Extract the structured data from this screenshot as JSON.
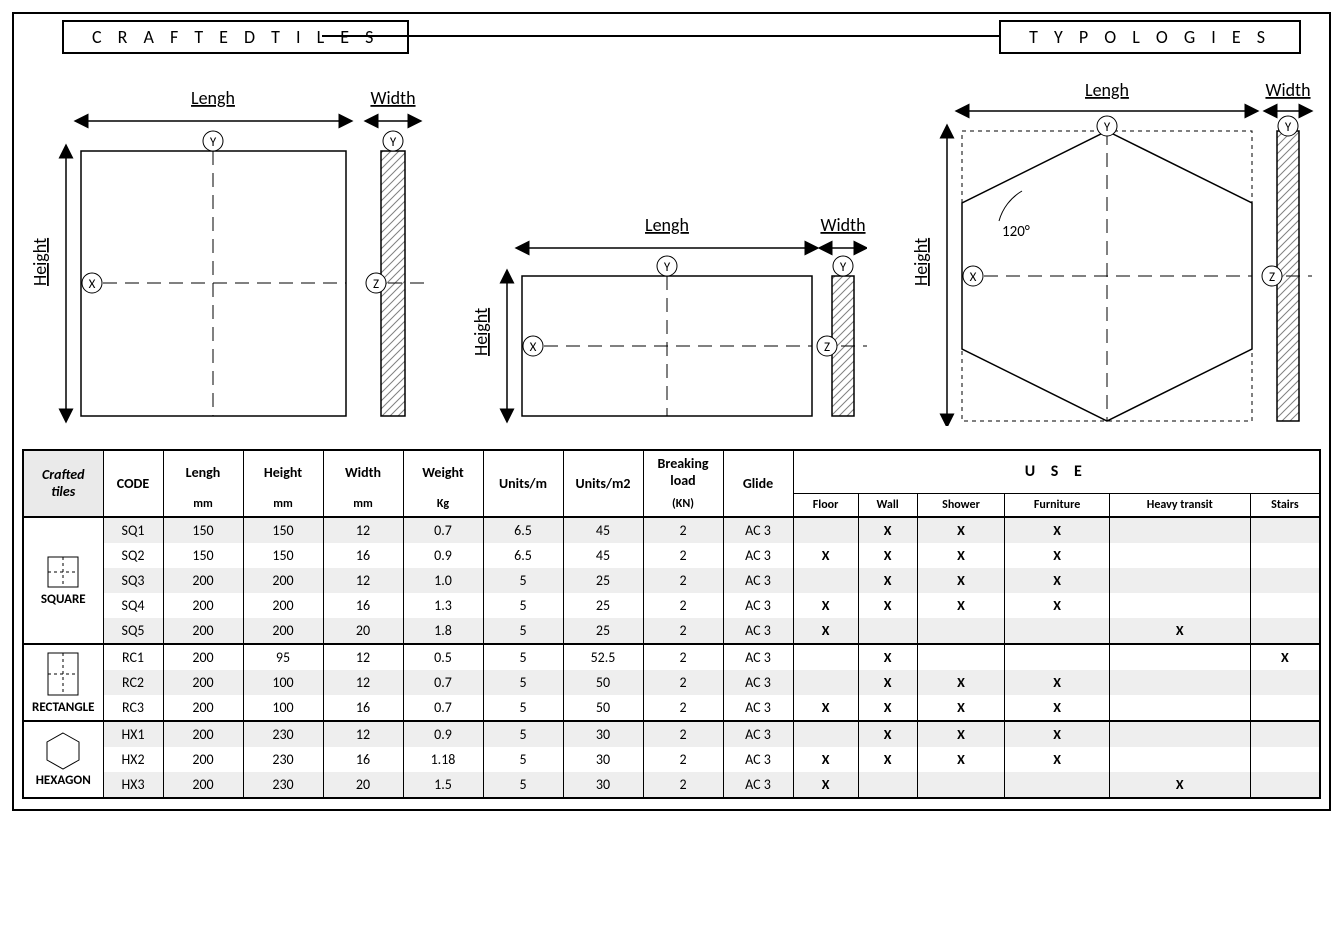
{
  "header": {
    "left": "C R A F T E D   T I L E S",
    "right": "T Y P O L O G I E S"
  },
  "diagrams": {
    "labels": {
      "length": "Lengh",
      "width": "Width",
      "height": "Height",
      "angle": "120°",
      "x": "X",
      "y": "Y",
      "z": "Z"
    }
  },
  "table": {
    "crafted_label": "Crafted\ntiles",
    "columns": {
      "code": "CODE",
      "length": "Lengh",
      "length_unit": "mm",
      "height": "Height",
      "height_unit": "mm",
      "width": "Width",
      "width_unit": "mm",
      "weight": "Weight",
      "weight_unit": "Kg",
      "units_m": "Units/m",
      "units_m2": "Units/m2",
      "breaking": "Breaking load",
      "breaking_unit": "(KN)",
      "glide": "Glide",
      "use": "U S E",
      "floor": "Floor",
      "wall": "Wall",
      "shower": "Shower",
      "furniture": "Furniture",
      "heavy": "Heavy transit",
      "stairs": "Stairs"
    },
    "groups": [
      {
        "shape": "SQUARE",
        "icon": "square",
        "rows": [
          {
            "code": "SQ1",
            "length": "150",
            "height": "150",
            "width": "12",
            "weight": "0.7",
            "unitsm": "6.5",
            "unitsm2": "45",
            "breaking": "2",
            "glide": "AC 3",
            "floor": "",
            "wall": "X",
            "shower": "X",
            "furniture": "X",
            "heavy": "",
            "stairs": ""
          },
          {
            "code": "SQ2",
            "length": "150",
            "height": "150",
            "width": "16",
            "weight": "0.9",
            "unitsm": "6.5",
            "unitsm2": "45",
            "breaking": "2",
            "glide": "AC 3",
            "floor": "X",
            "wall": "X",
            "shower": "X",
            "furniture": "X",
            "heavy": "",
            "stairs": ""
          },
          {
            "code": "SQ3",
            "length": "200",
            "height": "200",
            "width": "12",
            "weight": "1.0",
            "unitsm": "5",
            "unitsm2": "25",
            "breaking": "2",
            "glide": "AC 3",
            "floor": "",
            "wall": "X",
            "shower": "X",
            "furniture": "X",
            "heavy": "",
            "stairs": ""
          },
          {
            "code": "SQ4",
            "length": "200",
            "height": "200",
            "width": "16",
            "weight": "1.3",
            "unitsm": "5",
            "unitsm2": "25",
            "breaking": "2",
            "glide": "AC 3",
            "floor": "X",
            "wall": "X",
            "shower": "X",
            "furniture": "X",
            "heavy": "",
            "stairs": ""
          },
          {
            "code": "SQ5",
            "length": "200",
            "height": "200",
            "width": "20",
            "weight": "1.8",
            "unitsm": "5",
            "unitsm2": "25",
            "breaking": "2",
            "glide": "AC 3",
            "floor": "X",
            "wall": "",
            "shower": "",
            "furniture": "",
            "heavy": "X",
            "stairs": ""
          }
        ]
      },
      {
        "shape": "RECTANGLE",
        "icon": "rectangle",
        "rows": [
          {
            "code": "RC1",
            "length": "200",
            "height": "95",
            "width": "12",
            "weight": "0.5",
            "unitsm": "5",
            "unitsm2": "52.5",
            "breaking": "2",
            "glide": "AC 3",
            "floor": "",
            "wall": "X",
            "shower": "",
            "furniture": "",
            "heavy": "",
            "stairs": "X"
          },
          {
            "code": "RC2",
            "length": "200",
            "height": "100",
            "width": "12",
            "weight": "0.7",
            "unitsm": "5",
            "unitsm2": "50",
            "breaking": "2",
            "glide": "AC 3",
            "floor": "",
            "wall": "X",
            "shower": "X",
            "furniture": "X",
            "heavy": "",
            "stairs": ""
          },
          {
            "code": "RC3",
            "length": "200",
            "height": "100",
            "width": "16",
            "weight": "0.7",
            "unitsm": "5",
            "unitsm2": "50",
            "breaking": "2",
            "glide": "AC 3",
            "floor": "X",
            "wall": "X",
            "shower": "X",
            "furniture": "X",
            "heavy": "",
            "stairs": ""
          }
        ]
      },
      {
        "shape": "HEXAGON",
        "icon": "hexagon",
        "rows": [
          {
            "code": "HX1",
            "length": "200",
            "height": "230",
            "width": "12",
            "weight": "0.9",
            "unitsm": "5",
            "unitsm2": "30",
            "breaking": "2",
            "glide": "AC 3",
            "floor": "",
            "wall": "X",
            "shower": "X",
            "furniture": "X",
            "heavy": "",
            "stairs": ""
          },
          {
            "code": "HX2",
            "length": "200",
            "height": "230",
            "width": "16",
            "weight": "1.18",
            "unitsm": "5",
            "unitsm2": "30",
            "breaking": "2",
            "glide": "AC 3",
            "floor": "X",
            "wall": "X",
            "shower": "X",
            "furniture": "X",
            "heavy": "",
            "stairs": ""
          },
          {
            "code": "HX3",
            "length": "200",
            "height": "230",
            "width": "20",
            "weight": "1.5",
            "unitsm": "5",
            "unitsm2": "30",
            "breaking": "2",
            "glide": "AC 3",
            "floor": "X",
            "wall": "",
            "shower": "",
            "furniture": "",
            "heavy": "X",
            "stairs": ""
          }
        ]
      }
    ]
  },
  "style": {
    "hatch_color": "#bdbdbd",
    "dash": "6,6",
    "stroke": "#000000",
    "zebra_even": "#eeeeee"
  }
}
